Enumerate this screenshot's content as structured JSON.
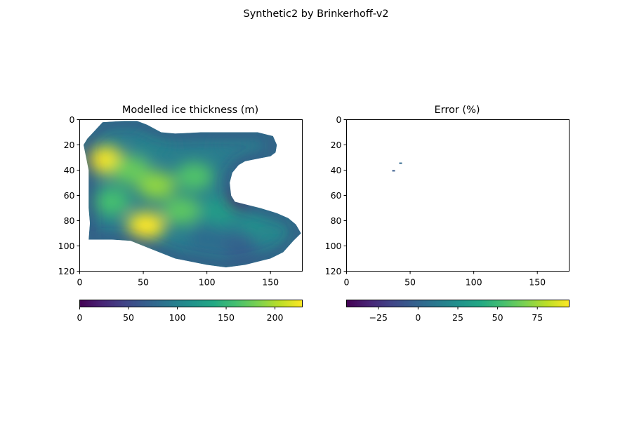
{
  "figure": {
    "suptitle": "Synthetic2 by Brinkerhoff-v2"
  },
  "chart_data": [
    {
      "type": "heatmap",
      "title": "Modelled ice thickness (m)",
      "colormap": "viridis",
      "xlim": [
        0,
        175
      ],
      "ylim": [
        120,
        0
      ],
      "x_ticks": [
        0,
        50,
        100,
        150
      ],
      "y_ticks": [
        0,
        20,
        40,
        60,
        80,
        100,
        120
      ],
      "colorbar": {
        "min": 0,
        "max": 228,
        "ticks": [
          0,
          50,
          100,
          150,
          200
        ]
      },
      "outline": [
        [
          18,
          2
        ],
        [
          35,
          1
        ],
        [
          45,
          1
        ],
        [
          53,
          4
        ],
        [
          64,
          10
        ],
        [
          75,
          11
        ],
        [
          95,
          10
        ],
        [
          120,
          10
        ],
        [
          140,
          10
        ],
        [
          152,
          13
        ],
        [
          155,
          20
        ],
        [
          154,
          26
        ],
        [
          150,
          29
        ],
        [
          140,
          31
        ],
        [
          130,
          33
        ],
        [
          125,
          36
        ],
        [
          120,
          42
        ],
        [
          118,
          50
        ],
        [
          119,
          60
        ],
        [
          122,
          65
        ],
        [
          130,
          67
        ],
        [
          142,
          70
        ],
        [
          155,
          74
        ],
        [
          164,
          78
        ],
        [
          170,
          83
        ],
        [
          174,
          90
        ],
        [
          168,
          96
        ],
        [
          160,
          105
        ],
        [
          150,
          110
        ],
        [
          130,
          115
        ],
        [
          115,
          117
        ],
        [
          100,
          115
        ],
        [
          75,
          110
        ],
        [
          55,
          102
        ],
        [
          40,
          96
        ],
        [
          25,
          95
        ],
        [
          7,
          95
        ],
        [
          8,
          82
        ],
        [
          7,
          70
        ],
        [
          7,
          55
        ],
        [
          7,
          40
        ],
        [
          5,
          30
        ],
        [
          3,
          20
        ],
        [
          6,
          15
        ]
      ],
      "hotspots": [
        {
          "x": 20,
          "y": 32,
          "value": 225
        },
        {
          "x": 52,
          "y": 84,
          "value": 228
        },
        {
          "x": 60,
          "y": 52,
          "value": 190
        },
        {
          "x": 40,
          "y": 40,
          "value": 175
        },
        {
          "x": 90,
          "y": 45,
          "value": 165
        },
        {
          "x": 80,
          "y": 72,
          "value": 170
        },
        {
          "x": 25,
          "y": 65,
          "value": 160
        },
        {
          "x": 110,
          "y": 72,
          "value": 125
        },
        {
          "x": 140,
          "y": 85,
          "value": 115
        },
        {
          "x": 155,
          "y": 88,
          "value": 105
        },
        {
          "x": 125,
          "y": 100,
          "value": 70
        },
        {
          "x": 120,
          "y": 20,
          "value": 95
        },
        {
          "x": 60,
          "y": 20,
          "value": 100
        },
        {
          "x": 125,
          "y": 63,
          "value": 10
        },
        {
          "x": 100,
          "y": 95,
          "value": 80
        }
      ]
    },
    {
      "type": "heatmap",
      "title": "Error (%)",
      "colormap": "viridis",
      "xlim": [
        0,
        175
      ],
      "ylim": [
        120,
        0
      ],
      "x_ticks": [
        0,
        50,
        100,
        150
      ],
      "y_ticks": [
        0,
        20,
        40,
        60,
        80,
        100,
        120
      ],
      "colorbar": {
        "min": -45,
        "max": 95,
        "ticks": [
          -25,
          0,
          25,
          50,
          75
        ]
      },
      "points": [
        {
          "x": 42.5,
          "y": 34.5,
          "value": 2
        },
        {
          "x": 37,
          "y": 40.5,
          "value": -5
        }
      ]
    }
  ]
}
